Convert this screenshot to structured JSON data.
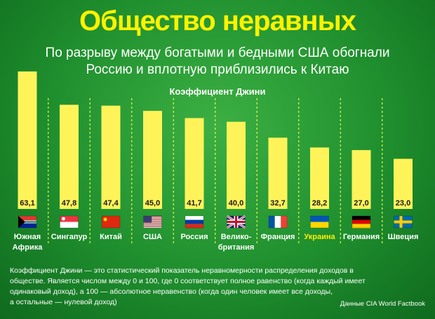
{
  "header": {
    "title": "Общество неравных",
    "subtitle_line1": "По разрыву между богатыми и бедными США обогнали",
    "subtitle_line2": "Россию и вплотную приблизились к Китаю"
  },
  "chart_data": {
    "type": "bar",
    "title": "Общество неравных",
    "ylabel": "Коэффициент Джини",
    "ylim": [
      0,
      65
    ],
    "categories": [
      [
        "Южная",
        "Африка"
      ],
      [
        "Сингапур"
      ],
      [
        "Китай"
      ],
      [
        "США"
      ],
      [
        "Россия"
      ],
      [
        "Велико-",
        "британия"
      ],
      [
        "Франция"
      ],
      [
        "Украина"
      ],
      [
        "Германия"
      ],
      [
        "Швеция"
      ]
    ],
    "values": [
      63.1,
      47.8,
      47.4,
      45.0,
      41.7,
      40.0,
      32.7,
      28.2,
      27.0,
      23.0
    ],
    "value_labels": [
      "63,1",
      "47,8",
      "47,4",
      "45,0",
      "41,7",
      "40,0",
      "32,7",
      "28,2",
      "27,0",
      "23,0"
    ],
    "flags": [
      "south-africa",
      "singapore",
      "china",
      "usa",
      "russia",
      "uk",
      "france",
      "ukraine",
      "germany",
      "sweden"
    ],
    "highlight_index": 7,
    "bar_color": "#fff35a",
    "highlight_label_color": "#ffee00"
  },
  "footnote": {
    "line1": "Коэффициент Джини — это статистический показатель неравномерности распределения доходов в",
    "line2": "обществе. Является числом между 0 и 100, где 0 соответствует полное равенство (когда каждый имеет",
    "line3": "одинаковый доход), а 100 — абсолютное неравенство (когда один человек имеет все доходы,",
    "line4": "а остальные — нулевой доход)"
  },
  "source": "Данные CIA World Factbook"
}
